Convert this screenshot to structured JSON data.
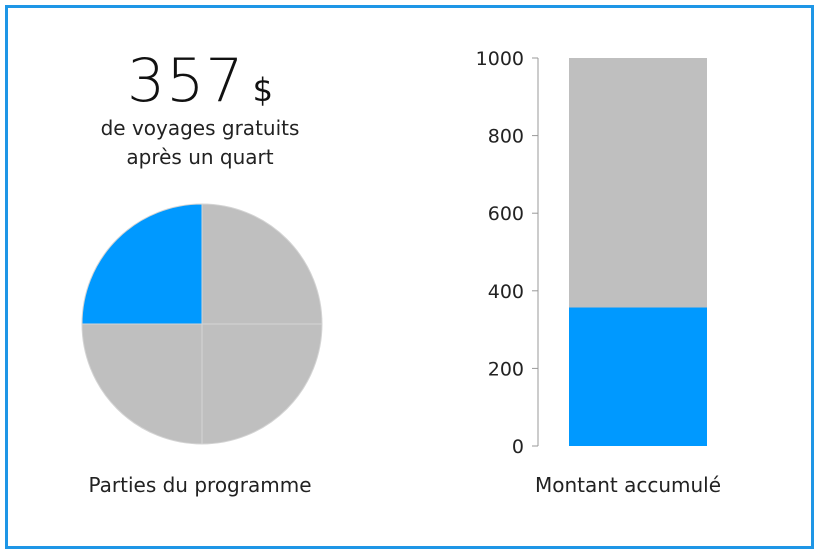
{
  "summary": {
    "amount": "357",
    "currency": "$",
    "line1": "de voyages gratuits",
    "line2": "après un quart"
  },
  "colors": {
    "accent": "#0099ff",
    "neutral": "#bfbfbf",
    "border": "#1e96e6"
  },
  "chart_data": [
    {
      "type": "pie",
      "title": "",
      "caption": "Parties du programme",
      "slices": [
        {
          "value": 1,
          "color": "#0099ff",
          "highlighted": true
        },
        {
          "value": 1,
          "color": "#bfbfbf",
          "highlighted": false
        },
        {
          "value": 1,
          "color": "#bfbfbf",
          "highlighted": false
        },
        {
          "value": 1,
          "color": "#bfbfbf",
          "highlighted": false
        }
      ],
      "highlighted_fraction": 0.25
    },
    {
      "type": "bar",
      "stacked": true,
      "caption": "Montant accumulé",
      "categories": [
        ""
      ],
      "series": [
        {
          "values": [
            357
          ],
          "color": "#0099ff"
        },
        {
          "values": [
            643
          ],
          "color": "#bfbfbf"
        }
      ],
      "ylim": [
        0,
        1000
      ],
      "yticks": [
        0,
        200,
        400,
        600,
        800,
        1000
      ],
      "grid": false
    }
  ]
}
